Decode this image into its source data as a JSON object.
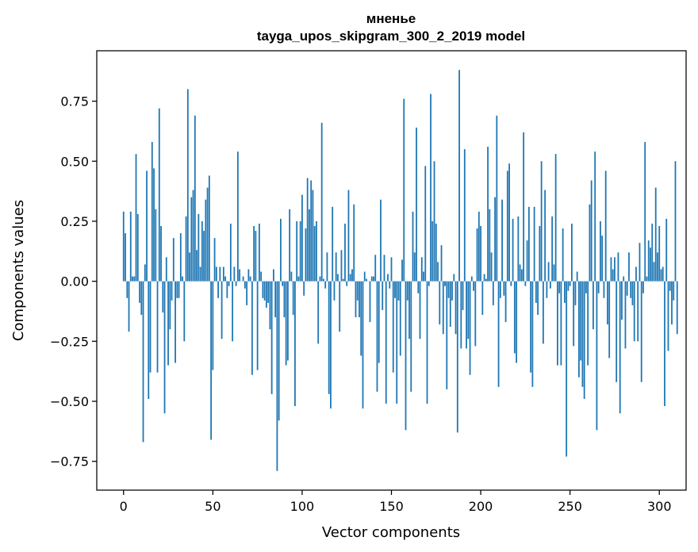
{
  "chart_data": {
    "type": "bar",
    "title": "мненье",
    "subtitle": "tayga_upos_skipgram_300_2_2019 model",
    "xlabel": "Vector components",
    "ylabel": "Components values",
    "xlim": [
      -15,
      315
    ],
    "ylim": [
      -0.87,
      0.96
    ],
    "xticks": [
      0,
      50,
      100,
      150,
      200,
      250,
      300
    ],
    "xtick_labels": [
      "0",
      "50",
      "100",
      "150",
      "200",
      "250",
      "300"
    ],
    "yticks": [
      -0.75,
      -0.5,
      -0.25,
      0.0,
      0.25,
      0.5,
      0.75
    ],
    "ytick_labels": [
      "−0.75",
      "−0.50",
      "−0.25",
      "0.00",
      "0.25",
      "0.50",
      "0.75"
    ],
    "bar_color": "#1f77b4",
    "grid": false,
    "values": [
      0.29,
      0.2,
      -0.07,
      -0.21,
      0.29,
      0.02,
      0.02,
      0.53,
      0.28,
      -0.09,
      -0.14,
      -0.67,
      0.07,
      0.46,
      -0.49,
      -0.38,
      0.58,
      0.47,
      0.3,
      -0.38,
      0.72,
      0.23,
      -0.13,
      -0.55,
      0.1,
      -0.35,
      -0.2,
      -0.08,
      0.18,
      -0.34,
      -0.07,
      -0.07,
      0.2,
      0.02,
      -0.25,
      0.27,
      0.8,
      0.12,
      0.35,
      0.38,
      0.69,
      0.13,
      0.28,
      0.06,
      0.25,
      0.21,
      0.34,
      0.39,
      0.44,
      -0.66,
      -0.37,
      0.18,
      0.06,
      -0.07,
      0.06,
      -0.24,
      0.06,
      0.02,
      -0.07,
      -0.02,
      0.24,
      -0.25,
      0.06,
      -0.02,
      0.54,
      0.05,
      0.0,
      0.02,
      -0.03,
      -0.1,
      0.05,
      0.02,
      -0.39,
      0.23,
      0.21,
      -0.37,
      0.24,
      0.04,
      -0.07,
      -0.08,
      -0.11,
      -0.09,
      -0.2,
      -0.47,
      0.05,
      -0.15,
      -0.79,
      -0.58,
      0.26,
      -0.02,
      -0.15,
      -0.35,
      -0.33,
      0.3,
      0.04,
      -0.14,
      -0.52,
      0.25,
      0.02,
      0.25,
      0.36,
      -0.06,
      0.22,
      0.43,
      0.3,
      0.42,
      0.38,
      0.23,
      0.25,
      -0.26,
      0.02,
      0.66,
      0.01,
      -0.03,
      0.12,
      -0.47,
      -0.53,
      0.31,
      -0.08,
      0.12,
      0.03,
      -0.21,
      0.13,
      0.01,
      0.24,
      -0.02,
      0.38,
      0.03,
      0.05,
      0.32,
      -0.15,
      -0.08,
      -0.15,
      -0.31,
      -0.53,
      0.04,
      0.01,
      0.0,
      -0.17,
      0.02,
      0.02,
      0.11,
      -0.46,
      -0.34,
      0.34,
      -0.12,
      0.11,
      -0.51,
      0.03,
      -0.03,
      0.1,
      -0.38,
      -0.07,
      -0.51,
      -0.08,
      -0.31,
      0.09,
      0.76,
      -0.62,
      -0.08,
      -0.24,
      -0.46,
      0.29,
      0.12,
      0.64,
      -0.05,
      -0.24,
      0.1,
      0.04,
      0.48,
      -0.51,
      -0.02,
      0.78,
      0.25,
      0.5,
      0.24,
      0.08,
      -0.18,
      0.15,
      -0.22,
      -0.02,
      -0.45,
      -0.07,
      -0.19,
      -0.08,
      0.03,
      -0.22,
      -0.63,
      0.88,
      -0.28,
      -0.12,
      0.55,
      -0.28,
      -0.24,
      -0.39,
      0.02,
      -0.04,
      -0.27,
      0.22,
      0.29,
      0.23,
      -0.14,
      0.03,
      0.01,
      0.56,
      0.3,
      0.12,
      -0.1,
      0.35,
      0.69,
      -0.44,
      -0.07,
      0.34,
      -0.06,
      -0.17,
      0.46,
      0.49,
      -0.02,
      0.26,
      -0.3,
      -0.34,
      0.27,
      0.07,
      0.05,
      0.62,
      -0.02,
      0.17,
      0.31,
      -0.38,
      -0.44,
      0.31,
      -0.09,
      -0.14,
      0.23,
      0.5,
      -0.26,
      0.38,
      -0.07,
      0.08,
      -0.03,
      0.27,
      0.07,
      0.53,
      -0.35,
      -0.05,
      -0.35,
      0.22,
      -0.09,
      -0.73,
      -0.04,
      -0.02,
      0.24,
      -0.27,
      -0.1,
      0.04,
      -0.4,
      -0.33,
      -0.44,
      -0.49,
      -0.05,
      -0.35,
      0.32,
      0.42,
      -0.2,
      0.54,
      -0.62,
      -0.05,
      0.25,
      0.19,
      -0.07,
      0.46,
      -0.18,
      -0.32,
      0.1,
      0.05,
      0.1,
      -0.42,
      0.12,
      -0.55,
      -0.16,
      0.02,
      -0.28,
      -0.06,
      0.12,
      -0.07,
      -0.1,
      -0.25,
      0.06,
      -0.25,
      0.16,
      -0.42,
      -0.05,
      0.58,
      0.02,
      0.17,
      0.14,
      0.24,
      0.08,
      0.39,
      0.12,
      0.23,
      0.05,
      0.06,
      -0.52,
      0.26,
      -0.29,
      -0.04,
      -0.18,
      -0.08,
      0.5,
      -0.22
    ]
  }
}
